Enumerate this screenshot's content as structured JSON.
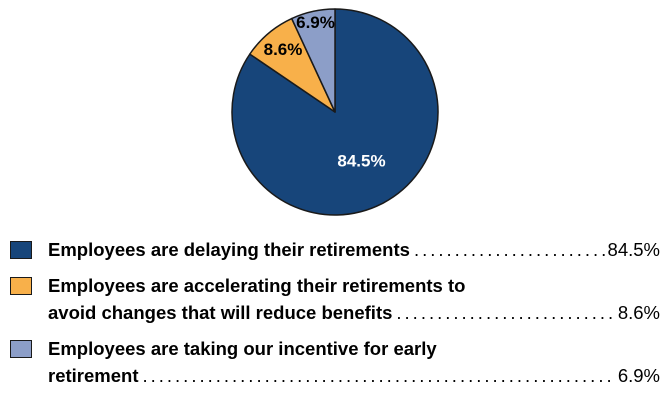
{
  "chart_data": {
    "type": "pie",
    "slices": [
      {
        "label_lines": [
          "Employees are delaying their retirements"
        ],
        "value": 84.5,
        "display_value": "84.5%",
        "color": "#17457a"
      },
      {
        "label_lines": [
          "Employees are accelerating their retirements to",
          "avoid changes that will reduce benefits"
        ],
        "value": 8.6,
        "display_value": "8.6%",
        "color": "#f8b04a"
      },
      {
        "label_lines": [
          "Employees are taking our incentive for early",
          "retirement"
        ],
        "value": 6.9,
        "display_value": "6.9%",
        "color": "#8c9ec8"
      }
    ],
    "start_angle_deg": 0,
    "direction": "clockwise",
    "legend_position": "bottom"
  }
}
